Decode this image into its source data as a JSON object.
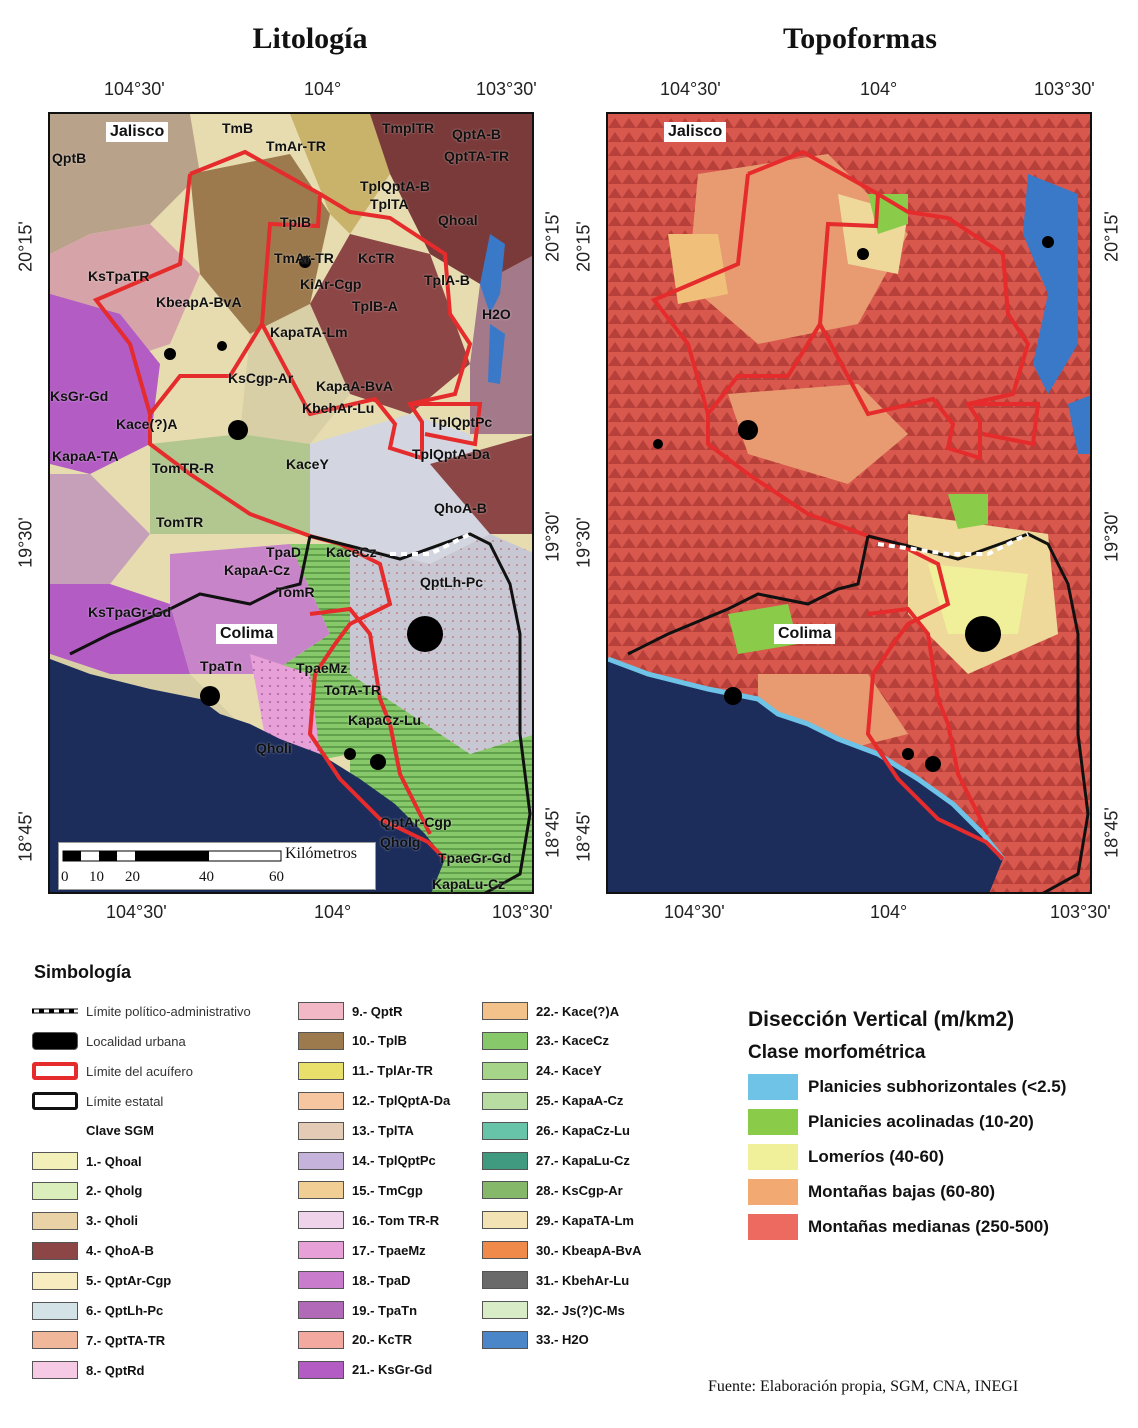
{
  "titles": {
    "left": "Litología",
    "right": "Topoformas"
  },
  "coords": {
    "lon_top": [
      "104°30'",
      "104°",
      "103°30'"
    ],
    "lat": [
      "20°15'",
      "19°30'",
      "18°45'"
    ]
  },
  "states": {
    "jalisco": "Jalisco",
    "colima": "Colima"
  },
  "litho_labels": [
    "QptB",
    "Jalisco",
    "TmB",
    "TmAr-TR",
    "TmplTR",
    "QptA-B",
    "QptTA-TR",
    "TplQptA-B",
    "TplTA",
    "TplB",
    "Qhoal",
    "TmAr-TR",
    "KcTR",
    "KsTpaTR",
    "KiAr-Cgp",
    "TplA-B",
    "KbeapA-BvA",
    "TplB-A",
    "H2O",
    "KapaTA-Lm",
    "KsCgp-Ar",
    "KapaA-BvA",
    "KsGr-Gd",
    "KbehAr-Lu",
    "Kace(?)A",
    "TplQptPc",
    "KapaA-TA",
    "TplQptA-Da",
    "TomTR-R",
    "KaceY",
    "TomTR",
    "QhoA-B",
    "TpaD",
    "KaceCz",
    "KapaA-Cz",
    "TomR",
    "QptLh-Pc",
    "KsTpaGr-Gd",
    "TpaTn",
    "TpaeMz",
    "ToTA-TR",
    "KapaCz-Lu",
    "Qholi",
    "QptAr-Cgp",
    "Qholg",
    "TpaeGr-Gd",
    "KapaLu-Cz"
  ],
  "scale": {
    "unit": "Kilómetros",
    "ticks": [
      "0",
      "10",
      "20",
      "40",
      "60"
    ]
  },
  "legend": {
    "heading": "Simbología",
    "base": [
      {
        "label": "Límite político-administrativo",
        "icon": "dashed-boundary-icon"
      },
      {
        "label": "Localidad urbana",
        "icon": "urban-area-icon"
      },
      {
        "label": "Límite del acuífero",
        "icon": "aquifer-boundary-icon"
      },
      {
        "label": "Límite estatal",
        "icon": "state-boundary-icon"
      }
    ],
    "clave": "Clave SGM",
    "col1": [
      {
        "label": "1.- Qhoal",
        "color": "#f3efb8"
      },
      {
        "label": "2.- Qholg",
        "color": "#d9eebb"
      },
      {
        "label": "3.- Qholi",
        "color": "#e8d2a6"
      },
      {
        "label": "4.- QhoA-B",
        "color": "#8c4646"
      },
      {
        "label": "5.- QptAr-Cgp",
        "color": "#f7ecc0"
      },
      {
        "label": "6.- QptLh-Pc",
        "color": "#d3e2e6"
      },
      {
        "label": "7.- QptTA-TR",
        "color": "#f1b79b"
      },
      {
        "label": "8.- QptRd",
        "color": "#f6c9e4"
      }
    ],
    "col2": [
      {
        "label": "9.- QptR",
        "color": "#f2b8c6"
      },
      {
        "label": "10.- TplB",
        "color": "#9c7a4e"
      },
      {
        "label": "11.- TplAr-TR",
        "color": "#e8e06a"
      },
      {
        "label": "12.- TplQptA-Da",
        "color": "#f6c6a0"
      },
      {
        "label": "13.- TplTA",
        "color": "#e4cbb6"
      },
      {
        "label": "14.- TplQptPc",
        "color": "#c6b3dc"
      },
      {
        "label": "15.- TmCgp",
        "color": "#f1cf94"
      },
      {
        "label": "16.- Tom TR-R",
        "color": "#efd3ea"
      },
      {
        "label": "17.- TpaeMz",
        "color": "#e8a0d8"
      },
      {
        "label": "18.- TpaD",
        "color": "#c87ccb"
      },
      {
        "label": "19.- TpaTn",
        "color": "#b06ab8"
      },
      {
        "label": "20.- KcTR",
        "color": "#f4a9a0"
      },
      {
        "label": "21.- KsGr-Gd",
        "color": "#b25cc4"
      }
    ],
    "col3": [
      {
        "label": "22.- Kace(?)A",
        "color": "#f2c28a"
      },
      {
        "label": "23.- KaceCz",
        "color": "#86c86a"
      },
      {
        "label": "24.- KaceY",
        "color": "#a6d488"
      },
      {
        "label": "25.- KapaA-Cz",
        "color": "#b9dca2"
      },
      {
        "label": "26.- KapaCz-Lu",
        "color": "#68c4a8"
      },
      {
        "label": "27.- KapaLu-Cz",
        "color": "#3f9a80"
      },
      {
        "label": "28.- KsCgp-Ar",
        "color": "#86b86a"
      },
      {
        "label": "29.- KapaTA-Lm",
        "color": "#f3e2b4"
      },
      {
        "label": "30.- KbeapA-BvA",
        "color": "#f08a4a"
      },
      {
        "label": "31.- KbehAr-Lu",
        "color": "#6a6a6a"
      },
      {
        "label": "32.- Js(?)C-Ms",
        "color": "#d8ecc8"
      },
      {
        "label": "33.- H2O",
        "color": "#4a86c8"
      }
    ]
  },
  "dv_legend": {
    "title": "Disección Vertical (m/km2)",
    "subtitle": "Clase morfométrica",
    "classes": [
      {
        "label": "Planicies subhorizontales (<2.5)",
        "color": "#6ec3e6"
      },
      {
        "label": "Planicies acolinadas (10-20)",
        "color": "#8acc4a"
      },
      {
        "label": "Lomeríos (40-60)",
        "color": "#f0f09a"
      },
      {
        "label": "Montañas bajas (60-80)",
        "color": "#f2aa72"
      },
      {
        "label": "Montañas medianas (250-500)",
        "color": "#ec6a60"
      }
    ]
  },
  "source": "Fuente: Elaboración propia, SGM, CNA, INEGI"
}
